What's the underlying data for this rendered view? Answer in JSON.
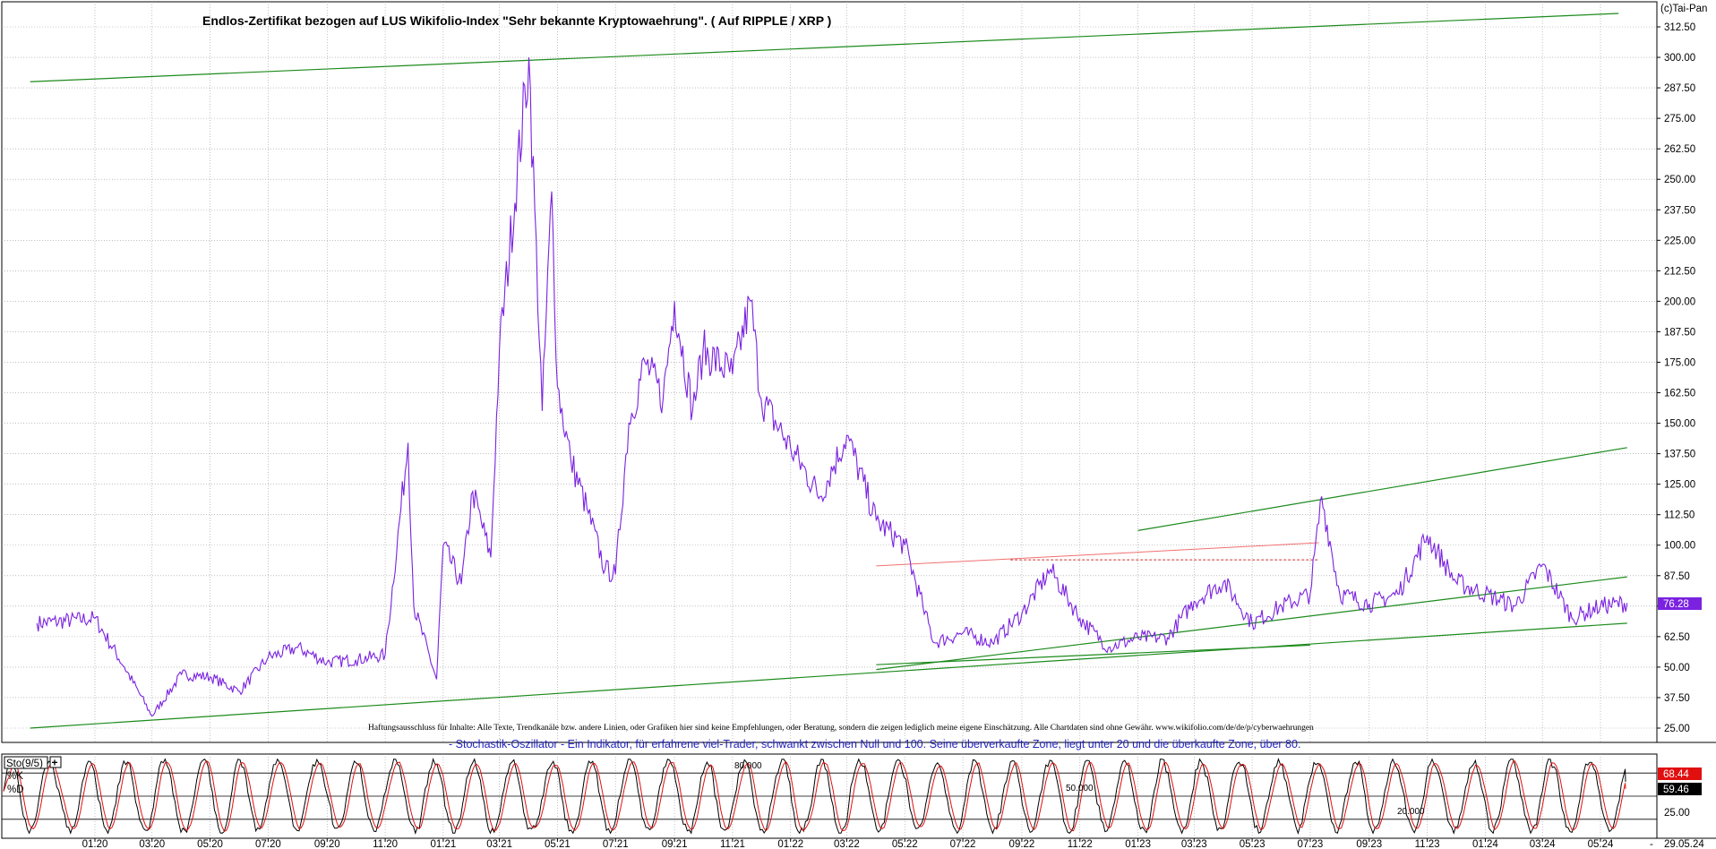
{
  "header": {
    "title": "Endlos-Zertifikat bezogen auf LUS Wikifolio-Index \"Sehr bekannte Kryptowaehrung\". ( Auf RIPPLE / XRP )",
    "copyright": "(c)Tai-Pan"
  },
  "disclaimer": "Haftungsausschluss für Inhalte: Alle Texte, Trendkanäle bzw. andere Linien, oder Grafiken hier sind keine Empfehlungen, oder Beratung, sondern die zeigen lediglich meine eigene Einschätzung. Alle Chartdaten sind ohne Gewähr.  www.wikifolio.com/de/de/p/cyberwaehrungen",
  "indicator": {
    "label": "Sto(9/5)",
    "description": "- Stochastik-Oszillator - Ein Indikator, für erfahrene viel-Trader, schwankt zwischen Null und 100. Seine überverkaufte Zone, liegt unter 20 und die überkaufte Zone, über 80.",
    "k_label": "%K",
    "d_label": "%D",
    "k_value": "68.44",
    "d_value": "59.46",
    "level_labels": [
      "80.000",
      "50.000",
      "20.000"
    ],
    "axis_label": "25.00"
  },
  "colors": {
    "price": "#7a22e0",
    "trend": "#1c8a1c",
    "resistance": "#f07070",
    "k_line": "#000000",
    "d_line": "#e01010"
  },
  "chart_data": {
    "type": "line",
    "y_ticks": [
      "312.50",
      "300.00",
      "287.50",
      "275.00",
      "262.50",
      "250.00",
      "237.50",
      "225.00",
      "212.50",
      "200.00",
      "187.50",
      "175.00",
      "162.50",
      "150.00",
      "137.50",
      "125.00",
      "112.50",
      "100.00",
      "87.50",
      "75.00",
      "62.50",
      "50.00",
      "37.50",
      "25.00"
    ],
    "ylim": [
      25,
      312.5
    ],
    "x_ticks": [
      "01.20",
      "03.20",
      "05.20",
      "07.20",
      "09.20",
      "11.20",
      "01.21",
      "03.21",
      "05.21",
      "07.21",
      "09.21",
      "11.21",
      "01.22",
      "03.22",
      "05.22",
      "07.22",
      "09.22",
      "11.22",
      "01.23",
      "03.23",
      "05.23",
      "07.23",
      "09.23",
      "11.23",
      "01.24",
      "03.24",
      "05.24"
    ],
    "x_end_label": "29.05.24",
    "last_value": "76.28",
    "series": [
      {
        "x": [
          "2019-11",
          "2020-01",
          "2020-02",
          "2020-03",
          "2020-04",
          "2020-05",
          "2020-06",
          "2020-07",
          "2020-08",
          "2020-09",
          "2020-10",
          "2020-11",
          "2020-11-25",
          "2020-12",
          "2020-12-25",
          "2021-01",
          "2021-01-20",
          "2021-02",
          "2021-02-20",
          "2021-03",
          "2021-04",
          "2021-04-15",
          "2021-04-25",
          "2021-05",
          "2021-05-15",
          "2021-06",
          "2021-06-20",
          "2021-07",
          "2021-07-15",
          "2021-08",
          "2021-08-20",
          "2021-09",
          "2021-09-20",
          "2021-10",
          "2021-11",
          "2021-11-20",
          "2021-12",
          "2022-01",
          "2022-02",
          "2022-03",
          "2022-04",
          "2022-05",
          "2022-05-20",
          "2022-06",
          "2022-07",
          "2022-08",
          "2022-09",
          "2022-10",
          "2022-11",
          "2022-12",
          "2023-01",
          "2023-02",
          "2023-03",
          "2023-04",
          "2023-05",
          "2023-06",
          "2023-07",
          "2023-07-13",
          "2023-08",
          "2023-09",
          "2023-10",
          "2023-11",
          "2023-12",
          "2024-01",
          "2024-02",
          "2024-03",
          "2024-04",
          "2024-05",
          "2024-05-29"
        ],
        "values": [
          68,
          70,
          50,
          30,
          47,
          46,
          40,
          54,
          58,
          52,
          53,
          55,
          142,
          75,
          45,
          100,
          84,
          122,
          95,
          180,
          300,
          155,
          245,
          165,
          135,
          115,
          90,
          88,
          150,
          175,
          160,
          200,
          155,
          180,
          170,
          200,
          160,
          140,
          120,
          145,
          110,
          100,
          75,
          60,
          64,
          60,
          72,
          90,
          70,
          58,
          62,
          62,
          77,
          85,
          68,
          75,
          80,
          120,
          80,
          76,
          80,
          104,
          85,
          80,
          75,
          92,
          70,
          75,
          76.28
        ]
      }
    ],
    "trend_lines": [
      {
        "from": [
          "2019-10-25",
          290
        ],
        "to": [
          "2024-05-20",
          318
        ]
      },
      {
        "from": [
          "2019-10-25",
          25
        ],
        "to": [
          "2024-05-29",
          68
        ]
      },
      {
        "from": [
          "2022-04-01",
          49
        ],
        "to": [
          "2024-05-29",
          87
        ]
      },
      {
        "from": [
          "2023-01-01",
          106
        ],
        "to": [
          "2024-05-29",
          140
        ]
      },
      {
        "from": [
          "2022-04-01",
          51
        ],
        "to": [
          "2023-07-01",
          59
        ]
      }
    ],
    "resistance_lines": [
      {
        "from": [
          "2022-04-01",
          91.5
        ],
        "to": [
          "2023-07-10",
          101
        ]
      },
      {
        "from": [
          "2022-08-20",
          94
        ],
        "to": [
          "2023-07-10",
          94
        ],
        "dashed": true
      }
    ],
    "oscillator": {
      "name": "Sto(9/5)",
      "levels": [
        80,
        50,
        20
      ],
      "k_last": 68.44,
      "d_last": 59.46
    }
  }
}
